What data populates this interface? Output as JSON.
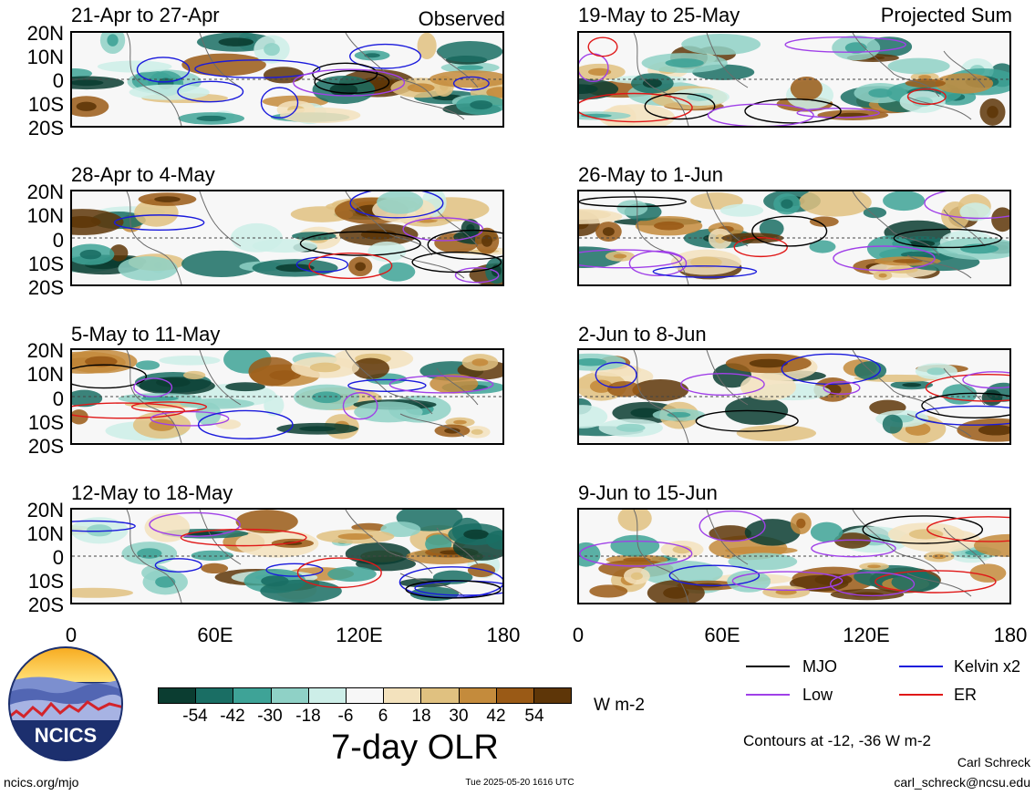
{
  "header": {
    "observed_label": "Observed",
    "projected_label": "Projected Sum"
  },
  "latitude_labels": [
    "20N",
    "10N",
    "0",
    "10S",
    "20S"
  ],
  "longitude_labels": [
    "0",
    "60E",
    "120E",
    "180"
  ],
  "panels": [
    {
      "title": "21-Apr to 27-Apr",
      "kind": "observed"
    },
    {
      "title": "28-Apr to 4-May",
      "kind": "observed"
    },
    {
      "title": "5-May to 11-May",
      "kind": "observed"
    },
    {
      "title": "12-May to 18-May",
      "kind": "observed"
    },
    {
      "title": "19-May to 25-May",
      "kind": "projected"
    },
    {
      "title": "26-May to 1-Jun",
      "kind": "projected"
    },
    {
      "title": "2-Jun to 8-Jun",
      "kind": "projected"
    },
    {
      "title": "9-Jun to 15-Jun",
      "kind": "projected"
    }
  ],
  "colorbar": {
    "colors": [
      "#0b3d31",
      "#1a6e64",
      "#3ea397",
      "#8fd1c6",
      "#cdeee8",
      "#f7f7f7",
      "#f3e2bd",
      "#e0c180",
      "#c48b3c",
      "#9a5a16",
      "#5e3608"
    ],
    "ticks": [
      "-54",
      "-42",
      "-30",
      "-18",
      "-6",
      "6",
      "18",
      "30",
      "42",
      "54"
    ],
    "units": "W m-2",
    "title": "7-day OLR"
  },
  "legend": {
    "items": [
      {
        "label": "MJO",
        "color": "#000000"
      },
      {
        "label": "Kelvin x2",
        "color": "#1a1adc"
      },
      {
        "label": "Low",
        "color": "#a040e8"
      },
      {
        "label": "ER",
        "color": "#e01818"
      }
    ],
    "contours_note": "Contours at -12, -36 W m-2"
  },
  "logo": {
    "text": "NCICS"
  },
  "footer": {
    "url": "ncics.org/mjo",
    "timestamp": "Tue 2025-05-20 1616 UTC",
    "author": "Carl Schreck",
    "email": "carl_schreck@ncsu.edu"
  }
}
